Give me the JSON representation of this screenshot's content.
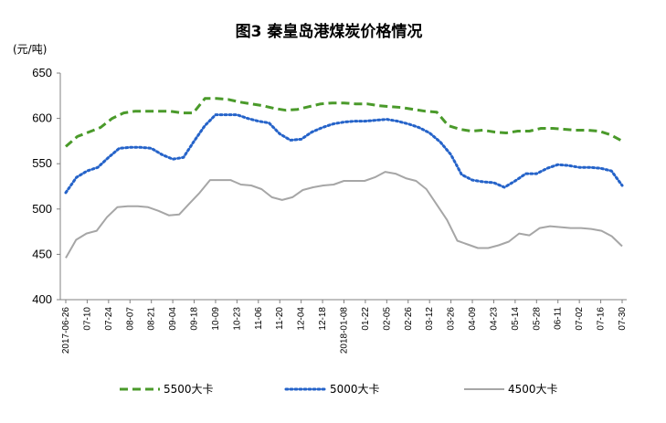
{
  "chart_data": {
    "type": "line",
    "title": "图3  秦皇岛港煤炭价格情况",
    "ylabel": "(元/吨)",
    "xlabel": "",
    "ylim": [
      400,
      650
    ],
    "yticks": [
      400,
      450,
      500,
      550,
      600,
      650
    ],
    "grid": false,
    "legend_position": "bottom",
    "x_tick_labels": [
      "2017-06-26",
      "07-10",
      "07-24",
      "08-07",
      "08-21",
      "09-04",
      "09-18",
      "10-09",
      "10-23",
      "11-06",
      "11-20",
      "12-04",
      "12-18",
      "2018-01-08",
      "01-22",
      "02-05",
      "02-26",
      "03-12",
      "03-26",
      "04-09",
      "04-23",
      "05-14",
      "05-28",
      "06-11",
      "07-02",
      "07-16",
      "07-30"
    ],
    "series": [
      {
        "name": "5500大卡",
        "color": "#4a9a2a",
        "style": "dashed",
        "values": [
          569,
          580,
          585,
          590,
          600,
          606,
          608,
          608,
          608,
          608,
          606,
          606,
          622,
          622,
          621,
          618,
          616,
          614,
          611,
          609,
          610,
          613,
          616,
          617,
          617,
          616,
          616,
          614,
          613,
          612,
          610,
          608,
          607,
          592,
          588,
          586,
          587,
          585,
          584,
          586,
          586,
          589,
          589,
          588,
          587,
          587,
          586,
          582,
          575
        ]
      },
      {
        "name": "5000大卡",
        "color": "#2563c9",
        "style": "dotted",
        "values": [
          518,
          535,
          542,
          546,
          557,
          567,
          568,
          568,
          567,
          560,
          555,
          557,
          575,
          592,
          604,
          604,
          604,
          600,
          597,
          595,
          583,
          576,
          577,
          585,
          590,
          594,
          596,
          597,
          597,
          598,
          599,
          597,
          594,
          590,
          584,
          574,
          560,
          538,
          532,
          530,
          529,
          524,
          531,
          539,
          539,
          545,
          549,
          548,
          546,
          546,
          545,
          542,
          526
        ]
      },
      {
        "name": "4500大卡",
        "color": "#a6a6a6",
        "style": "solid",
        "values": [
          446,
          466,
          473,
          476,
          491,
          502,
          503,
          503,
          502,
          498,
          493,
          494,
          506,
          518,
          532,
          532,
          532,
          527,
          526,
          522,
          513,
          510,
          513,
          521,
          524,
          526,
          527,
          531,
          531,
          531,
          535,
          541,
          539,
          534,
          531,
          522,
          505,
          488,
          465,
          461,
          457,
          457,
          460,
          464,
          473,
          471,
          479,
          481,
          480,
          479,
          479,
          478,
          476,
          470,
          459
        ]
      }
    ]
  }
}
